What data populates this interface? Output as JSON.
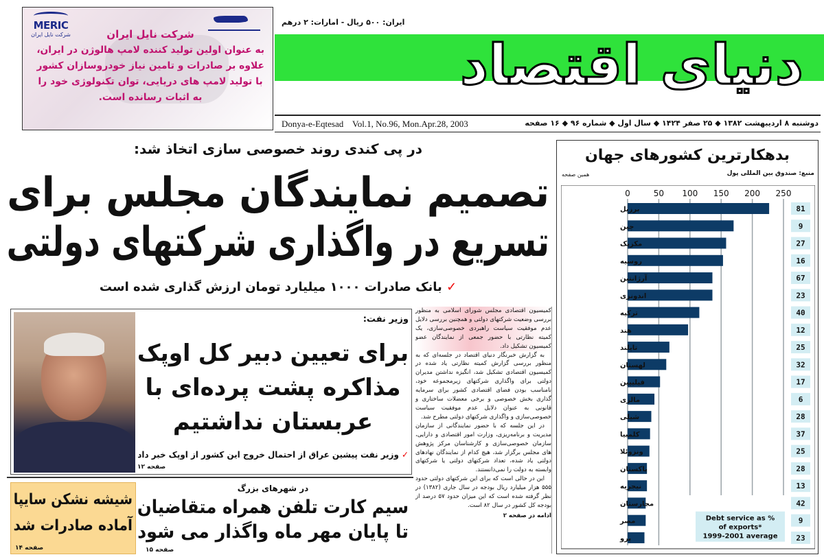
{
  "ad": {
    "brand": "MERIC",
    "brand_sub": "شرکت نایل ایران",
    "title": "شرکت نایل ایران",
    "lines": [
      "به عنوان اولین تولید کننده لامپ هالوژن در ایران،",
      "علاوه بر صادرات و تامین نیاز خودروسازان کشور",
      "با تولید لامپ های دریایی، توان تکنولوژی خود را",
      "به اثبات رسانده است."
    ]
  },
  "masthead": {
    "price": "ایران: ۵۰۰ ریال - امارات: ۲ درهم",
    "logo_text": "دنیای اقتصاد",
    "brand_color": "#2fe23b",
    "dateline_en": "Donya-e-Eqtesad    Vol.1, No.96, Mon.Apr.28, 2003",
    "dateline_fa": "دوشنبه ۸ اردیبهشت ۱۳۸۲ ◆ ۲۵ صفر ۱۴۲۴ ◆ سال اول ◆ شماره ۹۶ ◆ ۱۶ صفحه"
  },
  "lead": {
    "kicker": "در پی کندی روند خصوصی سازی اتخاذ شد:",
    "headline_1": "تصمیم نمایندگان مجلس برای",
    "headline_2": "تسریع در واگذاری شرکتهای دولتی",
    "subhead": "بانک صادرات ۱۰۰۰ میلیارد تومان ارزش گذاری شده است",
    "check": "✓"
  },
  "oil_story": {
    "kicker": "وزیر نفت:",
    "headline_1": "برای تعیین دبیر کل اوپک",
    "headline_2": "مذاکره پشت پرده‌ای با",
    "headline_3": "عربستان نداشتیم",
    "subhead": "وزیر نفت پیشین عراق از احتمال خروج این کشور از اوپک خبر داد",
    "page": "صفحه ۱۲"
  },
  "saipa": {
    "headline_1": "شیشه نشکن سایپا",
    "headline_2": "آماده صادرات شد",
    "page": "صفحه ۱۴"
  },
  "simcard": {
    "kicker": "در شهرهای بزرگ",
    "headline_1": "سیم کارت تلفن همراه متقاضیان",
    "headline_2": "تا پایان مهر ماه واگذار می شود",
    "page": "صفحه ۱۵"
  },
  "column": {
    "paragraphs": [
      "کمیسیون اقتصادی مجلس شورای اسلامی به منظور بررسی وضعیت شرکتهای دولتی و همچنین بررسی دلایل عدم موفقیت سیاست راهبردی خصوصی‌سازی، یک کمیته نظارتی با حضور جمعی از نمایندگان عضو کمیسیون تشکیل داد.",
      "به گزارش خبرنگار دنیای اقتصاد در جلسه‌ای که به منظور بررسی گزارش کمیته نظارتی یاد شده در کمیسیون اقتصادی تشکیل شد، انگیزه نداشتن مدیران دولتی برای واگذاری شرکتهای زیرمجموعه خود، نامناسب بودن فضای اقتصادی کشور برای سرمایه گذاری بخش خصوصی و برخی معضلات ساختاری و قانونی به عنوان دلایل عدم موفقیت سیاست خصوصی‌سازی و واگذاری شرکتهای دولتی مطرح شد.",
      "در این جلسه که با حضور نمایندگانی از سازمان مدیریت و برنامه‌ریزی، وزارت امور اقتصادی و دارایی، سازمان خصوصی‌سازی و کارشناسان مرکز پژوهش های مجلس برگزار شد، هیچ کدام از نمایندگان نهادهای دولتی یاد شده، تعداد شرکتهای دولتی یا شرکتهای وابسته به دولت را نمی‌دانستند.",
      "این در حالی است که برای این شرکتهای دولتی حدود ۵۵۵ هزار میلیارد ریال بودجه در سال جاری (۱۳۸۲) در نظر گرفته شده است که این میزان حدود ۵۷ درصد از بودجه کل کشور در سال ۸۲ است."
    ],
    "continued": "ادامه در صفحه ۲"
  },
  "chart_data": {
    "type": "bar",
    "orientation": "horizontal",
    "title": "بدهکارترین کشورهای جهان",
    "source": "منبع: صندوق بین المللی پول",
    "page_ref": "همین صفحه",
    "categories": [
      "برزیل",
      "چین",
      "مکزیک",
      "روسیه",
      "آرژانتین",
      "اندونزی",
      "ترکیه",
      "هند",
      "تایلند",
      "لهستان",
      "فیلیپین",
      "مالزی",
      "شیلی",
      "کلمبیا",
      "ونزوئلا",
      "پاکستان",
      "نیجریه",
      "مجارستان",
      "مصر",
      "پرو"
    ],
    "values": [
      227,
      170,
      158,
      153,
      136,
      136,
      115,
      97,
      67,
      62,
      52,
      43,
      38,
      36,
      35,
      31,
      31,
      29,
      29,
      27
    ],
    "side_values": [
      81,
      9,
      27,
      16,
      67,
      23,
      40,
      12,
      25,
      32,
      17,
      6,
      28,
      37,
      25,
      28,
      13,
      42,
      9,
      23
    ],
    "side_label": "Debt service as % of exports* 1999-2001 average",
    "side_label_lines": [
      "Debt service as %",
      "of exports*",
      "1999-2001 average"
    ],
    "xlim": [
      0,
      250
    ],
    "xticks": [
      "0",
      "50",
      "100",
      "150",
      "200",
      "250"
    ],
    "grid": true,
    "colors": {
      "bar": "#0d3b66",
      "side_box": "#d3edf3",
      "grid": "#9aa3a8"
    }
  }
}
